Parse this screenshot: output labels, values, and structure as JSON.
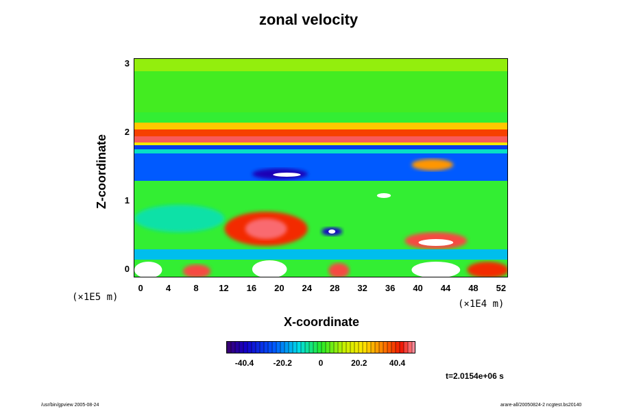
{
  "chart_data": {
    "type": "heatmap",
    "title": "zonal velocity",
    "xlabel": "X-coordinate",
    "ylabel": "Z-coordinate",
    "x_scale_note": "(×1E4 m)",
    "y_scale_note": "(×1E5 m)",
    "xlim": [
      -1,
      53
    ],
    "ylim": [
      -0.12,
      3.08
    ],
    "x_ticks": [
      "0",
      "4",
      "8",
      "12",
      "16",
      "20",
      "24",
      "28",
      "32",
      "36",
      "40",
      "44",
      "48",
      "52"
    ],
    "y_ticks": [
      "0",
      "1",
      "2",
      "3"
    ],
    "colorbar": {
      "range": [
        -50,
        50
      ],
      "tick_labels": [
        "-40.4",
        "-20.2",
        "0",
        "20.2",
        "40.4"
      ],
      "tick_values": [
        -40.4,
        -20.2,
        0,
        20.2,
        40.4
      ]
    },
    "time_label": "t=2.0154e+06 s",
    "features": [
      {
        "x": [
          -1,
          53
        ],
        "z": [
          2.9,
          3.08
        ],
        "value": 8
      },
      {
        "x": [
          -1,
          53
        ],
        "z": [
          2.3,
          2.9
        ],
        "value": 2
      },
      {
        "x": [
          -1,
          53
        ],
        "z": [
          2.05,
          2.15
        ],
        "value": 25
      },
      {
        "x": [
          -1,
          53
        ],
        "z": [
          1.95,
          2.05
        ],
        "value": 38
      },
      {
        "x": [
          -1,
          53
        ],
        "z": [
          1.86,
          1.95
        ],
        "value": 46
      },
      {
        "x": [
          -1,
          53
        ],
        "z": [
          1.82,
          1.86
        ],
        "value": 20
      },
      {
        "x": [
          -1,
          53
        ],
        "z": [
          1.76,
          1.82
        ],
        "value": -30
      },
      {
        "x": [
          -1,
          53
        ],
        "z": [
          1.7,
          1.76
        ],
        "value": -10
      },
      {
        "x": [
          -1,
          53
        ],
        "z": [
          1.3,
          1.7
        ],
        "value": -25
      },
      {
        "x": [
          16,
          24
        ],
        "z": [
          1.32,
          1.48
        ],
        "value": -42
      },
      {
        "x": [
          19,
          23
        ],
        "z": [
          1.36,
          1.42
        ],
        "value": -60
      },
      {
        "x": [
          39,
          45
        ],
        "z": [
          1.45,
          1.62
        ],
        "value": 30
      },
      {
        "x": [
          12,
          24
        ],
        "z": [
          0.35,
          0.85
        ],
        "value": 40
      },
      {
        "x": [
          15,
          21
        ],
        "z": [
          0.45,
          0.75
        ],
        "value": 47
      },
      {
        "x": [
          -1,
          12
        ],
        "z": [
          0.55,
          0.95
        ],
        "value": -8
      },
      {
        "x": [
          26,
          29
        ],
        "z": [
          0.5,
          0.62
        ],
        "value": -40
      },
      {
        "x": [
          27,
          28
        ],
        "z": [
          0.53,
          0.59
        ],
        "value": -60
      },
      {
        "x": [
          38,
          47
        ],
        "z": [
          0.3,
          0.55
        ],
        "value": 45
      },
      {
        "x": [
          40,
          45
        ],
        "z": [
          0.35,
          0.45
        ],
        "value": 60
      },
      {
        "x": [
          -1,
          3
        ],
        "z": [
          -0.12,
          0.12
        ],
        "value": 60
      },
      {
        "x": [
          6,
          10
        ],
        "z": [
          -0.12,
          0.08
        ],
        "value": 45
      },
      {
        "x": [
          16,
          21
        ],
        "z": [
          -0.12,
          0.14
        ],
        "value": 60
      },
      {
        "x": [
          27,
          30
        ],
        "z": [
          -0.12,
          0.1
        ],
        "value": 45
      },
      {
        "x": [
          39,
          46
        ],
        "z": [
          -0.12,
          0.12
        ],
        "value": 60
      },
      {
        "x": [
          47,
          53
        ],
        "z": [
          -0.12,
          0.12
        ],
        "value": 40
      },
      {
        "x": [
          34,
          36
        ],
        "z": [
          1.05,
          1.12
        ],
        "value": -60
      },
      {
        "x": [
          -1,
          53
        ],
        "z": [
          0.15,
          0.3
        ],
        "value": -15
      }
    ]
  },
  "footer": {
    "left": "/usr/bin/gpview 2005-08-24",
    "right": "arare-all/20050824-2 ncgtest.bs20140"
  }
}
